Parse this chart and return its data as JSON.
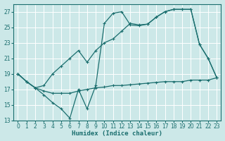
{
  "xlabel": "Humidex (Indice chaleur)",
  "bg_color": "#cce8e8",
  "grid_color": "#b8d8d8",
  "line_color": "#1a6e6e",
  "xlim": [
    -0.5,
    23.5
  ],
  "ylim": [
    13,
    28
  ],
  "yticks": [
    13,
    15,
    17,
    19,
    21,
    23,
    25,
    27
  ],
  "xticks": [
    0,
    1,
    2,
    3,
    4,
    5,
    6,
    7,
    8,
    9,
    10,
    11,
    12,
    13,
    14,
    15,
    16,
    17,
    18,
    19,
    20,
    21,
    22,
    23
  ],
  "line1_x": [
    0,
    1,
    2,
    3,
    4,
    5,
    6,
    7,
    8,
    9,
    10,
    11,
    12,
    13,
    14,
    15,
    16,
    17,
    18,
    19,
    20,
    21,
    22,
    23
  ],
  "line1_y": [
    19.0,
    18.0,
    17.2,
    16.3,
    15.3,
    14.5,
    13.3,
    17.0,
    14.5,
    17.5,
    25.5,
    26.8,
    27.0,
    25.3,
    25.2,
    25.4,
    26.3,
    27.0,
    27.3,
    27.3,
    27.3,
    22.8,
    21.0,
    18.5
  ],
  "line2_x": [
    0,
    1,
    2,
    3,
    4,
    5,
    6,
    7,
    8,
    9,
    10,
    11,
    12,
    13,
    14,
    15,
    16,
    17,
    18,
    19,
    20,
    21,
    22,
    23
  ],
  "line2_y": [
    19.0,
    18.0,
    17.2,
    16.8,
    16.5,
    16.5,
    16.5,
    16.8,
    17.0,
    17.2,
    17.3,
    17.5,
    17.5,
    17.6,
    17.7,
    17.8,
    17.9,
    18.0,
    18.0,
    18.0,
    18.2,
    18.2,
    18.2,
    18.5
  ],
  "line3_x": [
    0,
    1,
    2,
    3,
    4,
    5,
    6,
    7,
    8,
    9,
    10,
    11,
    12,
    13,
    14,
    15,
    16,
    17,
    18,
    19,
    20,
    21,
    22,
    23
  ],
  "line3_y": [
    19.0,
    18.0,
    17.2,
    17.5,
    19.0,
    20.0,
    21.0,
    22.0,
    20.5,
    22.0,
    23.0,
    23.5,
    24.5,
    25.5,
    25.3,
    25.4,
    26.3,
    27.0,
    27.3,
    27.3,
    27.3,
    22.8,
    21.0,
    18.5
  ]
}
